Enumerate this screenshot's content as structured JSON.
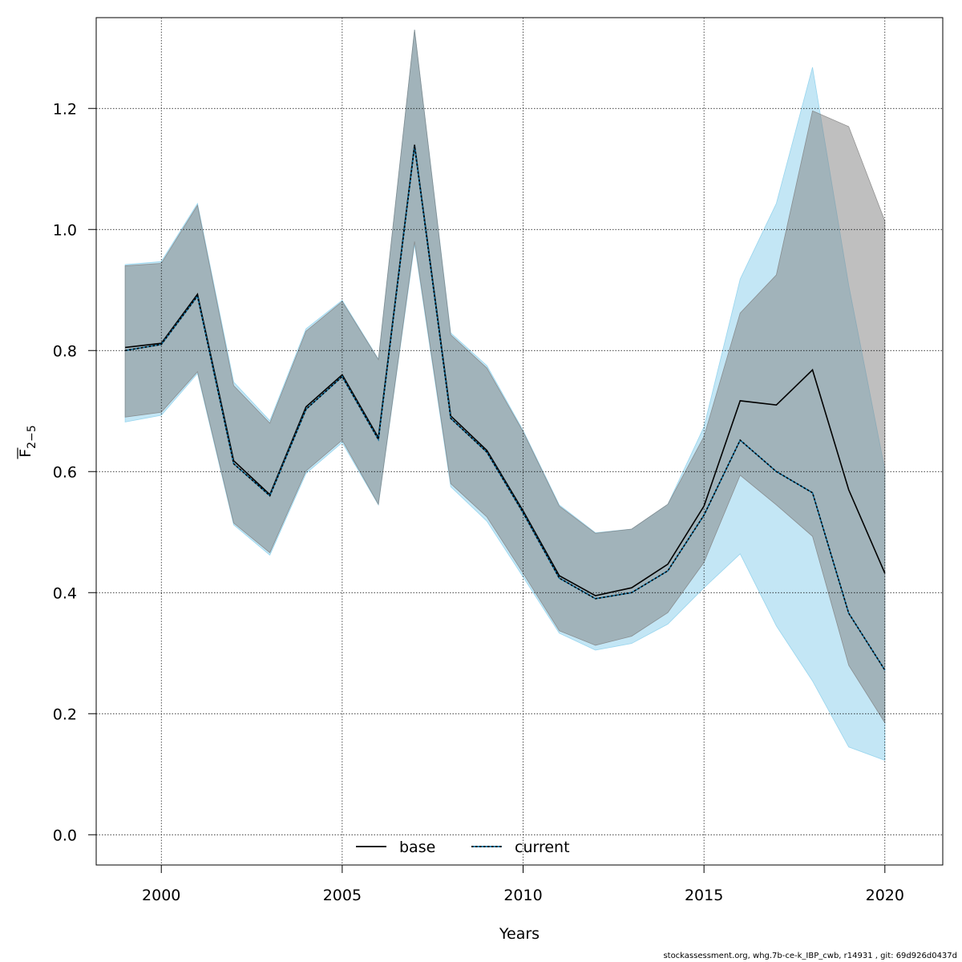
{
  "chart_data": {
    "type": "line",
    "title": "",
    "xlabel": "Years",
    "ylabel_main": "F",
    "ylabel_sub": "2−5",
    "xlim": [
      1998.2,
      2021.6
    ],
    "ylim": [
      -0.05,
      1.35
    ],
    "x_ticks": [
      2000,
      2005,
      2010,
      2015,
      2020
    ],
    "y_ticks": [
      0.0,
      0.2,
      0.4,
      0.6,
      0.8,
      1.0,
      1.2
    ],
    "y_tick_labels": [
      "0.0",
      "0.2",
      "0.4",
      "0.6",
      "0.8",
      "1.0",
      "1.2"
    ],
    "grid": true,
    "legend_position": "bottom-center",
    "x": [
      1999,
      2000,
      2001,
      2002,
      2003,
      2004,
      2005,
      2006,
      2007,
      2008,
      2009,
      2010,
      2011,
      2012,
      2013,
      2014,
      2015,
      2016,
      2017,
      2018,
      2019,
      2020
    ],
    "series": [
      {
        "name": "base",
        "line_color": "#000000",
        "band_color": "#808080",
        "values": [
          0.805,
          0.812,
          0.893,
          0.618,
          0.562,
          0.707,
          0.76,
          0.656,
          1.14,
          0.692,
          0.635,
          0.535,
          0.428,
          0.395,
          0.408,
          0.447,
          0.543,
          0.717,
          0.71,
          0.768,
          0.57,
          0.432
        ],
        "lower": [
          0.69,
          0.698,
          0.765,
          0.515,
          0.466,
          0.601,
          0.652,
          0.546,
          0.98,
          0.58,
          0.525,
          0.432,
          0.337,
          0.313,
          0.328,
          0.367,
          0.45,
          0.594,
          0.545,
          0.493,
          0.28,
          0.185
        ],
        "upper": [
          0.94,
          0.944,
          1.04,
          0.742,
          0.68,
          0.832,
          0.881,
          0.785,
          1.33,
          0.826,
          0.771,
          0.666,
          0.543,
          0.498,
          0.505,
          0.546,
          0.658,
          0.862,
          0.925,
          1.196,
          1.17,
          1.014
        ]
      },
      {
        "name": "current",
        "line_color": "#0a6fa0",
        "band_color": "#87ceeb",
        "values": [
          0.8,
          0.81,
          0.89,
          0.613,
          0.56,
          0.703,
          0.757,
          0.653,
          1.138,
          0.688,
          0.632,
          0.532,
          0.424,
          0.39,
          0.4,
          0.436,
          0.528,
          0.652,
          0.6,
          0.565,
          0.366,
          0.272
        ],
        "lower": [
          0.682,
          0.693,
          0.762,
          0.512,
          0.462,
          0.597,
          0.648,
          0.545,
          0.975,
          0.575,
          0.518,
          0.426,
          0.333,
          0.305,
          0.316,
          0.348,
          0.408,
          0.464,
          0.345,
          0.254,
          0.145,
          0.123
        ],
        "upper": [
          0.942,
          0.947,
          1.043,
          0.748,
          0.684,
          0.836,
          0.883,
          0.786,
          1.33,
          0.829,
          0.775,
          0.668,
          0.545,
          0.499,
          0.505,
          0.546,
          0.674,
          0.918,
          1.043,
          1.268,
          0.908,
          0.603
        ]
      }
    ]
  },
  "footer_text": "stockassessment.org, whg.7b-ce-k_IBP_cwb, r14931 , git: 69d926d0437d"
}
